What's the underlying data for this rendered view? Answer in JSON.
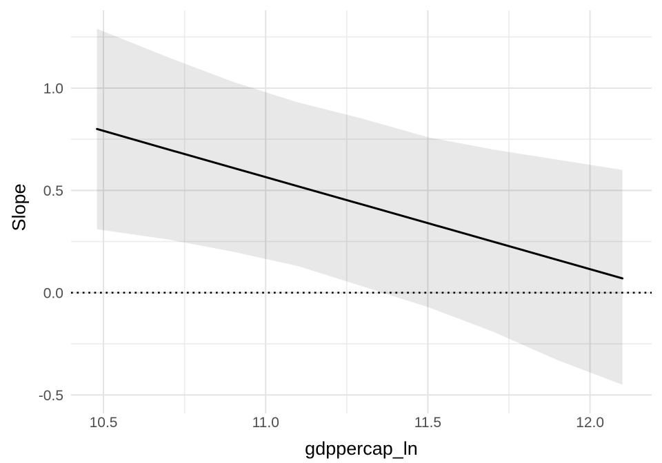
{
  "chart_data": {
    "type": "line",
    "title": "",
    "xlabel": "gdppercap_ln",
    "ylabel": "Slope",
    "xlim": [
      10.4,
      12.19
    ],
    "ylim": [
      -0.59,
      1.38
    ],
    "x_ticks": [
      {
        "value": 10.5,
        "label": "10.5"
      },
      {
        "value": 11.0,
        "label": "11.0"
      },
      {
        "value": 11.5,
        "label": "11.5"
      },
      {
        "value": 12.0,
        "label": "12.0"
      }
    ],
    "y_ticks": [
      {
        "value": -0.5,
        "label": "-0.5"
      },
      {
        "value": 0.0,
        "label": "0.0"
      },
      {
        "value": 0.5,
        "label": "0.5"
      },
      {
        "value": 1.0,
        "label": "1.0"
      }
    ],
    "x_minor_ticks": [
      10.75,
      11.25,
      11.75
    ],
    "y_minor_ticks": [
      -0.25,
      0.25,
      0.75,
      1.25
    ],
    "grid": "major+minor",
    "legend": "none",
    "reference_line": {
      "y": 0.0,
      "style": "dotted"
    },
    "series": [
      {
        "name": "slope_estimate",
        "type": "line",
        "x": [
          10.48,
          10.7,
          10.9,
          11.1,
          11.3,
          11.5,
          11.7,
          11.9,
          12.1
        ],
        "y": [
          0.8,
          0.7,
          0.61,
          0.52,
          0.43,
          0.34,
          0.25,
          0.16,
          0.07
        ]
      },
      {
        "name": "confidence_band",
        "type": "area",
        "x": [
          10.48,
          10.7,
          10.9,
          11.1,
          11.3,
          11.5,
          11.7,
          11.9,
          12.1
        ],
        "upper": [
          1.29,
          1.15,
          1.03,
          0.93,
          0.85,
          0.76,
          0.7,
          0.65,
          0.6
        ],
        "lower": [
          0.31,
          0.26,
          0.2,
          0.13,
          0.03,
          -0.07,
          -0.19,
          -0.33,
          -0.45
        ]
      }
    ],
    "colors": {
      "line": "#000000",
      "ribbon_fill": "#000000",
      "ribbon_opacity": 0.09,
      "zero_line": "#000000",
      "grid_major": "#E3E3E3",
      "grid_minor": "#ECECEC",
      "tick_label": "#4D4D4D",
      "axis_title": "#000000",
      "background": "#FFFFFF"
    }
  }
}
